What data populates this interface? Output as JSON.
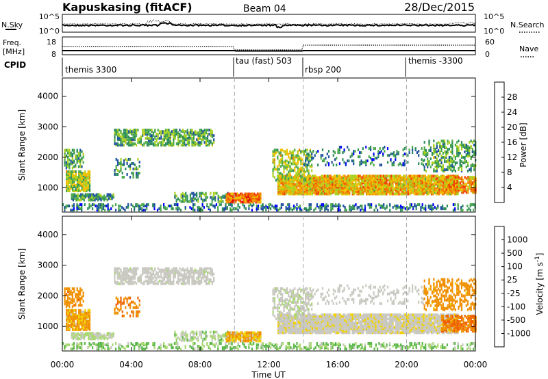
{
  "header": {
    "station": "Kapuskasing (fitACF)",
    "beam": "Beam 04",
    "date": "28/Dec/2015"
  },
  "nsky_panel": {
    "left_label": "N.Sky",
    "left_ticks": [
      "10^5",
      "10^0"
    ],
    "right_ticks": [
      "10^5",
      "10^0"
    ],
    "right_label": "N.Search"
  },
  "freq_panel": {
    "left_label_line1": "Freq.",
    "left_label_line2": "[MHz]",
    "left_ticks": [
      "18",
      "8"
    ],
    "right_ticks": [
      "60",
      "0"
    ],
    "right_label": "Nave",
    "cpid_label": "CPID"
  },
  "cpid_segments": [
    {
      "label": "themis 3300",
      "start_h": 0
    },
    {
      "label": "tau (fast) 503",
      "start_h": 10
    },
    {
      "label": "rbsp 200",
      "start_h": 14
    },
    {
      "label": "themis -3300",
      "start_h": 20
    }
  ],
  "colors": {
    "power": [
      "#0000ff",
      "#1e50a0",
      "#2c8c5a",
      "#4aa84a",
      "#a8d020",
      "#f0c000",
      "#f08000",
      "#f04000",
      "#e00000"
    ],
    "velocity": [
      "#1a2ea8",
      "#2a66a8",
      "#2e8c52",
      "#5bb84a",
      "#a8d870",
      "#c8c8c0",
      "#f0d000",
      "#f09000",
      "#f06000",
      "#f03000",
      "#e00000"
    ]
  },
  "chart_data": [
    {
      "type": "heatmap",
      "name": "power",
      "ylabel": "Slant Range [km]",
      "yticks": [
        "1000",
        "2000",
        "3000",
        "4000"
      ],
      "ylim": [
        200,
        4600
      ],
      "xlim_h": [
        0,
        24
      ],
      "colorbar_label": "Power [dB]",
      "colorbar_ticks": [
        "4",
        "8",
        "12",
        "16",
        "20",
        "24",
        "28"
      ],
      "colorbar_range": [
        0,
        32
      ]
    },
    {
      "type": "heatmap",
      "name": "velocity",
      "ylabel": "Slant Range [km]",
      "yticks": [
        "1000",
        "2000",
        "3000",
        "4000"
      ],
      "ylim": [
        200,
        4600
      ],
      "xlim_h": [
        0,
        24
      ],
      "xticks": [
        "00:00",
        "04:00",
        "08:00",
        "12:00",
        "16:00",
        "20:00",
        "00:00"
      ],
      "xlabel": "Time UT",
      "colorbar_label": "Velocity [m s^-1]",
      "colorbar_ticks": [
        "1000",
        "500",
        "100",
        "25",
        "-25",
        "-100",
        "-500",
        "-1000"
      ]
    }
  ],
  "scatter_regions": [
    {
      "t0": 0.2,
      "t1": 1.6,
      "r0": 850,
      "r1": 1500,
      "pw": 16,
      "vel": -80,
      "d": 0.8
    },
    {
      "t0": 0.1,
      "t1": 1.2,
      "r0": 1600,
      "r1": 2200,
      "pw": 12,
      "vel": -200,
      "d": 0.35
    },
    {
      "t0": 0.5,
      "t1": 3.0,
      "r0": 550,
      "r1": 750,
      "pw": 10,
      "vel": 20,
      "d": 0.7
    },
    {
      "t0": 3.0,
      "t1": 8.8,
      "r0": 2350,
      "r1": 2850,
      "pw": 12,
      "vel": 5,
      "d": 0.55
    },
    {
      "t0": 3.0,
      "t1": 4.5,
      "r0": 1300,
      "r1": 1900,
      "pw": 10,
      "vel": -250,
      "d": 0.3
    },
    {
      "t0": 6.5,
      "t1": 9.6,
      "r0": 500,
      "r1": 800,
      "pw": 10,
      "vel": 40,
      "d": 0.45
    },
    {
      "t0": 9.5,
      "t1": 11.5,
      "r0": 480,
      "r1": 780,
      "pw": 24,
      "vel": -60,
      "d": 0.85
    },
    {
      "t0": 12.5,
      "t1": 23.0,
      "r0": 750,
      "r1": 1350,
      "pw": 20,
      "vel": -10,
      "d": 0.85
    },
    {
      "t0": 12.2,
      "t1": 14.5,
      "r0": 1200,
      "r1": 2200,
      "pw": 16,
      "vel": 10,
      "d": 0.4
    },
    {
      "t0": 14.0,
      "t1": 21.0,
      "r0": 1700,
      "r1": 2300,
      "pw": 8,
      "vel": 0,
      "d": 0.15
    },
    {
      "t0": 21.0,
      "t1": 24.0,
      "r0": 1500,
      "r1": 2500,
      "pw": 12,
      "vel": -150,
      "d": 0.35
    },
    {
      "t0": 22.0,
      "t1": 24.0,
      "r0": 800,
      "r1": 1300,
      "pw": 22,
      "vel": -300,
      "d": 0.6
    },
    {
      "t0": 0.0,
      "t1": 24.0,
      "r0": 220,
      "r1": 420,
      "pw": 8,
      "vel": 60,
      "d": 0.35
    }
  ]
}
